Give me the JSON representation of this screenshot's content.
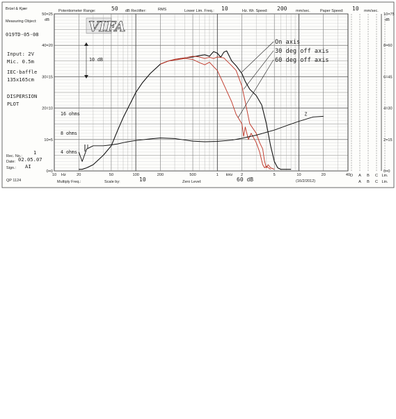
{
  "header": {
    "brand": "Brüel & Kjær",
    "pot_range_label": "Potentiometer Range:",
    "pot_range_value": "50",
    "rectifier_label": "dB Rectifier:",
    "rectifier_value": "RMS",
    "lower_freq_label": "Lower Lim. Freq.:",
    "lower_freq_value": "10",
    "wr_speed_label": "Hz. Wr. Speed:",
    "wr_speed_value": "200",
    "wr_speed_unit": "mm/sec.",
    "paper_speed_label": "Paper Speed:",
    "paper_speed_value": "10",
    "paper_speed_unit": "mm/sec."
  },
  "left_panel": {
    "measuring_object_label": "Measuring Object:",
    "object_id": "019TD-05-08",
    "input": "Input: 2V",
    "mic": "Mic. 0.5m",
    "baffle": "IEC-baffle",
    "baffle_size": "135x165cm",
    "title_line1": "DISPERSION",
    "title_line2": "PLOT",
    "rec_no_label": "Rec. No.:",
    "rec_no_value": "1",
    "date_label": "Date:",
    "date_value": "02.05.07",
    "sign_label": "Sign.:",
    "sign_value": "AI",
    "ref": "QP 1124"
  },
  "logo": {
    "text": "VIFA"
  },
  "footer": {
    "multiply_label": "Multiply Freq.:",
    "scale_label": "Scale by:",
    "scale_value": "10",
    "zero_label": "Zero Level:",
    "zero_value": "60 dB",
    "part_no": "(16/2/2012)",
    "letters_row1": [
      "D",
      "A",
      "B",
      "C",
      "Lin."
    ],
    "letters_row2": [
      "A",
      "B",
      "C",
      "Lin."
    ]
  },
  "annotations": {
    "range_marker": "10 dB",
    "impedance_symbol": "Z",
    "ohm_labels": [
      "16 ohms",
      "8 ohms",
      "4 ohms"
    ]
  },
  "left_scale": {
    "header": "dB",
    "labels": [
      "50=25",
      "40=20",
      "30=15",
      "20=10",
      "10=5",
      "0=0"
    ]
  },
  "right_scale": {
    "labels": [
      "10=75",
      "8=60",
      "6=45",
      "4=30",
      "2=15",
      "0=0"
    ],
    "db_label": "dB"
  },
  "x_tick_labels": [
    "10",
    "Hz",
    "20",
    "50",
    "100",
    "200",
    "500",
    "1",
    "kHz",
    "2",
    "5",
    "10",
    "20",
    "40"
  ],
  "chart_data": {
    "type": "line",
    "title": "DISPERSION PLOT",
    "xlabel": "",
    "ylabel": "dB",
    "x_scale": "log",
    "xlim": [
      10,
      40000
    ],
    "ylim": [
      0,
      50
    ],
    "grid": true,
    "legend_placement": "top-right",
    "series": [
      {
        "name": "On axis",
        "color": "#111111",
        "x": [
          20,
          22,
          25,
          30,
          40,
          50,
          60,
          70,
          80,
          100,
          120,
          150,
          200,
          250,
          300,
          400,
          500,
          600,
          700,
          800,
          900,
          1000,
          1100,
          1200,
          1300,
          1500,
          1700,
          2000,
          2200,
          2500,
          3000,
          3500,
          4000,
          4500,
          5000,
          5500,
          6000,
          7000,
          8000
        ],
        "y": [
          0.5,
          0.5,
          1,
          2,
          5,
          8,
          13,
          17,
          20,
          25,
          28,
          31,
          34,
          35,
          35.5,
          36,
          36.3,
          36.7,
          37,
          36.5,
          38,
          37.5,
          36.2,
          37.8,
          38.2,
          35,
          33.5,
          31,
          28.5,
          26,
          24,
          21,
          15,
          8,
          3,
          1,
          0.5,
          0.5,
          0.5
        ]
      },
      {
        "name": "30 deg off axis",
        "color": "#c0392b",
        "x": [
          200,
          250,
          300,
          400,
          500,
          600,
          700,
          800,
          900,
          1000,
          1200,
          1500,
          1700,
          2000,
          2200,
          2500,
          3000,
          3300,
          3600,
          3800,
          4000,
          4200,
          4500,
          5000
        ],
        "y": [
          34,
          35,
          35.5,
          36,
          36.5,
          36.3,
          35.8,
          36.2,
          35.8,
          36.3,
          36,
          33.5,
          32,
          27,
          22,
          15,
          12,
          9,
          7,
          3,
          1,
          2,
          1,
          0.5
        ]
      },
      {
        "name": "60 deg off axis",
        "color": "#c0392b",
        "x": [
          200,
          250,
          300,
          400,
          500,
          600,
          700,
          800,
          900,
          1000,
          1200,
          1500,
          1700,
          2000,
          2100,
          2200,
          2400,
          2600,
          3000,
          3300,
          3600,
          3800,
          4000,
          4500
        ],
        "y": [
          34,
          35,
          35.3,
          35.8,
          35.5,
          34.5,
          33.8,
          34.6,
          33.2,
          32,
          27.5,
          22,
          18,
          15,
          11,
          14,
          10,
          12,
          9,
          6,
          2,
          1,
          1.5,
          0.5
        ]
      },
      {
        "name": "Impedance",
        "color": "#111111",
        "x": [
          20,
          22,
          25,
          30,
          40,
          50,
          60,
          70,
          80,
          100,
          150,
          200,
          300,
          500,
          700,
          1000,
          1500,
          2000,
          3000,
          5000,
          7000,
          10000,
          15000,
          20000
        ],
        "y": [
          6,
          3,
          7,
          8,
          8,
          8.3,
          8.6,
          9,
          9.3,
          9.7,
          10.2,
          10.5,
          10.3,
          9.5,
          9.3,
          9.4,
          9.8,
          10.4,
          11.4,
          13,
          14.4,
          15.8,
          17.2,
          17.4
        ]
      }
    ]
  }
}
